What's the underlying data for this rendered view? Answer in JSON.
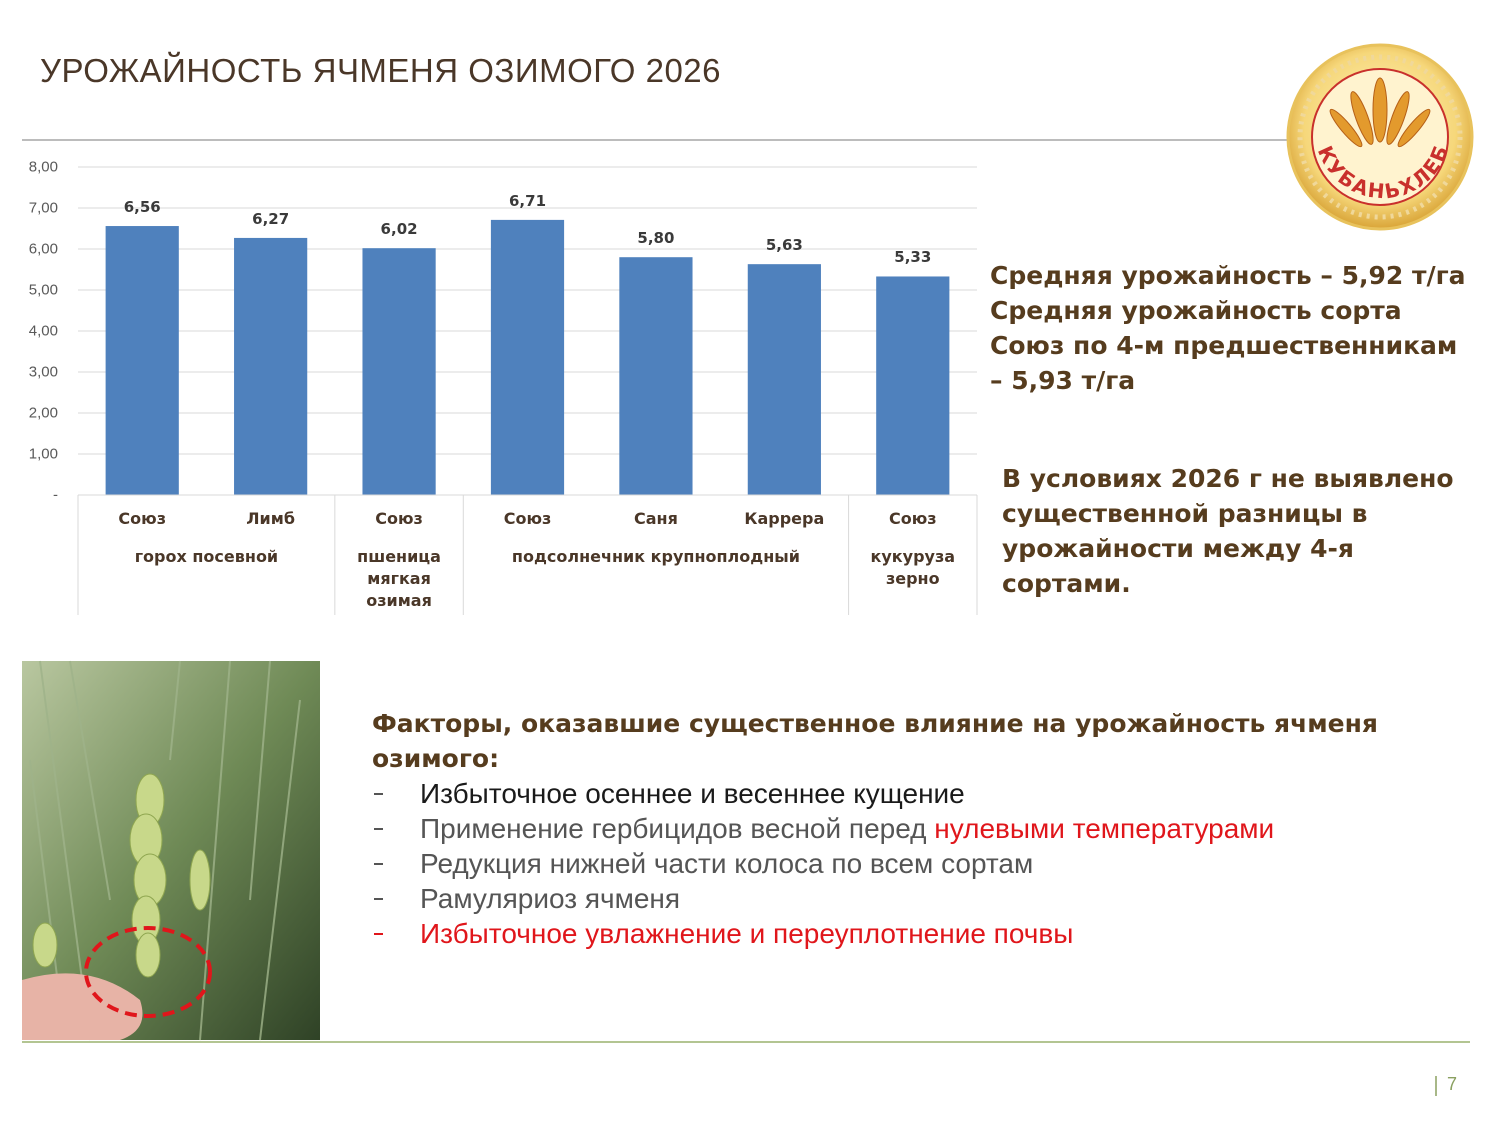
{
  "title": "УРОЖАЙНОСТЬ ЯЧМЕНЯ ОЗИМОГО 2026",
  "logo": {
    "text": "КУБАНЬХЛЕБ"
  },
  "chart_data": {
    "type": "bar",
    "color": "#4f81bd",
    "grid": true,
    "ylim": [
      0,
      8
    ],
    "yticks": [
      {
        "value": 0,
        "label": "-"
      },
      {
        "value": 1,
        "label": "1,00"
      },
      {
        "value": 2,
        "label": "2,00"
      },
      {
        "value": 3,
        "label": "3,00"
      },
      {
        "value": 4,
        "label": "4,00"
      },
      {
        "value": 5,
        "label": "5,00"
      },
      {
        "value": 6,
        "label": "6,00"
      },
      {
        "value": 7,
        "label": "7,00"
      },
      {
        "value": 8,
        "label": "8,00"
      }
    ],
    "groups": [
      {
        "name": "горох посевной",
        "categories": [
          "Союз",
          "Лимб"
        ],
        "values": [
          6.56,
          6.27
        ],
        "value_labels": [
          "6,56",
          "6,27"
        ]
      },
      {
        "name": "пшеница мягкая озимая",
        "categories": [
          "Союз"
        ],
        "values": [
          6.02
        ],
        "value_labels": [
          "6,02"
        ]
      },
      {
        "name": "подсолнечник крупноплодный",
        "categories": [
          "Союз",
          "Саня",
          "Каррера"
        ],
        "values": [
          6.71,
          5.8,
          5.63
        ],
        "value_labels": [
          "6,71",
          "5,80",
          "5,63"
        ]
      },
      {
        "name": "кукуруза зерно",
        "categories": [
          "Союз"
        ],
        "values": [
          5.33
        ],
        "value_labels": [
          "5,33"
        ]
      }
    ]
  },
  "summary": {
    "lines": [
      "Средняя урожайность – 5,92 т/га",
      "Средняя урожайность сорта",
      "Союз по 4-м предшественникам",
      "– 5,93 т/га"
    ]
  },
  "note": {
    "lines": [
      "В условиях 2026 г не выявлено",
      "существенной разницы в",
      "урожайности между 4-я",
      "сортами."
    ]
  },
  "factors": {
    "heading": "Факторы, оказавшие существенное влияние на урожайность ячменя озимого:",
    "items": [
      {
        "text": "Избыточное осеннее и весеннее кущение"
      },
      {
        "text": "Применение гербицидов весной перед",
        "highlight": "нулевыми температурами"
      },
      {
        "text": "Редукция нижней части колоса по всем сортам"
      },
      {
        "text": "Рамуляриоз ячменя"
      },
      {
        "highlight": "Избыточное увлажнение и переуплотнение почвы"
      }
    ]
  },
  "page_number": "7"
}
